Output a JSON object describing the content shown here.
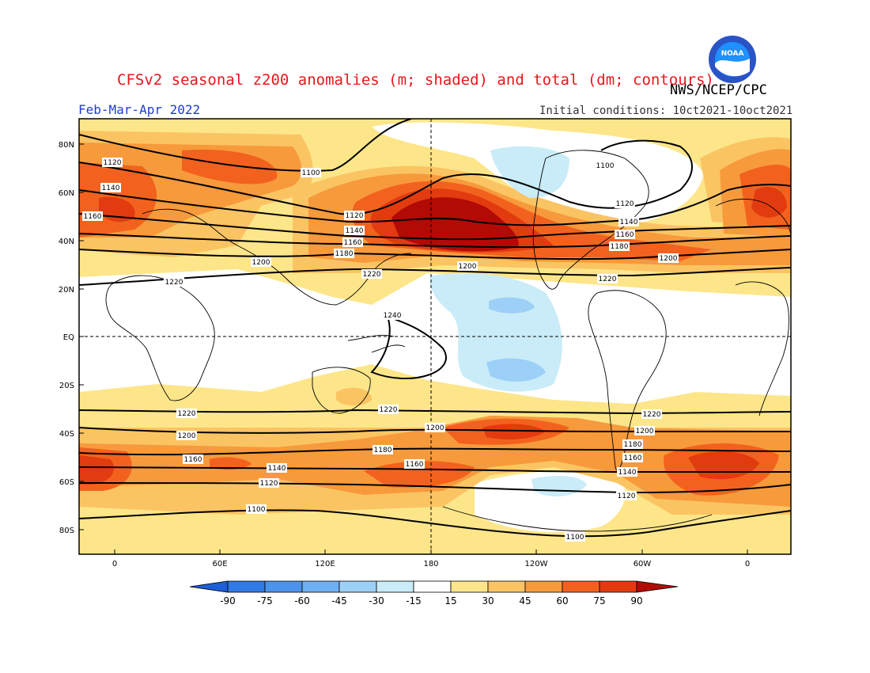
{
  "title": "CFSv2 seasonal z200 anomalies (m; shaded) and total (dm; contours)",
  "agency": "NWS/NCEP/CPC",
  "period": "Feb-Mar-Apr 2022",
  "initial_conditions": "Initial conditions: 10ct2021-10oct2021",
  "logo": {
    "text": "NOAA",
    "colors": {
      "ring": "#2a53c6",
      "inner": "#1e90ff",
      "bird": "#ffffff"
    }
  },
  "lat_labels": [
    "80N",
    "60N",
    "40N",
    "20N",
    "EQ",
    "20S",
    "40S",
    "60S",
    "80S"
  ],
  "lon_labels": [
    "0",
    "60E",
    "120E",
    "180",
    "120W",
    "60W",
    "0"
  ],
  "contour_labels": [
    "1120",
    "1100",
    "1140",
    "1160",
    "1200",
    "1220",
    "1180",
    "1240"
  ],
  "colorbar": {
    "ticks": [
      "-90",
      "-75",
      "-60",
      "-45",
      "-30",
      "-15",
      "15",
      "30",
      "45",
      "60",
      "75",
      "90"
    ],
    "colors": [
      "#1d5fd8",
      "#2f7ae4",
      "#4c93ec",
      "#6faff3",
      "#9dd0f7",
      "#c9ecf8",
      "#ffffff",
      "#fde68a",
      "#fbc463",
      "#f79a3c",
      "#f2621e",
      "#e23b0f",
      "#b20a05"
    ]
  },
  "map_colors": {
    "pos15": "#fde68a",
    "pos30": "#fbc463",
    "pos45": "#f79a3c",
    "pos60": "#f2621e",
    "pos75": "#e23b0f",
    "pos90": "#b20a05",
    "neg15": "#c9ecf8",
    "neg30": "#9dd0f7"
  }
}
